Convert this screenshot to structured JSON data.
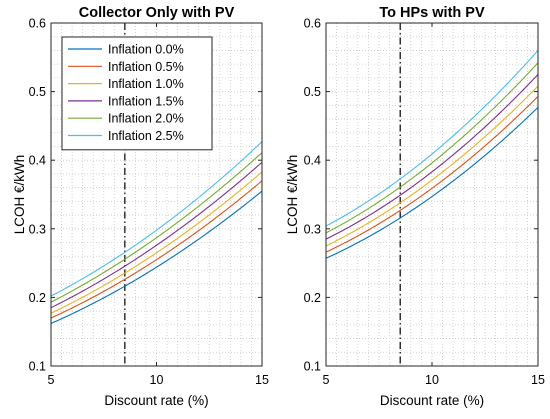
{
  "chart_data": [
    {
      "type": "line",
      "title": "Collector Only with PV",
      "xlabel": "Discount rate (%)",
      "ylabel": "LCOH €/kWh",
      "xlim": [
        5,
        15
      ],
      "ylim": [
        0.1,
        0.6
      ],
      "xticks": [
        5,
        10,
        15
      ],
      "yticks": [
        0.1,
        0.2,
        0.3,
        0.4,
        0.5,
        0.6
      ],
      "xtick_labels": [
        "5",
        "10",
        "15"
      ],
      "ytick_labels": [
        "0.1",
        "0.2",
        "0.3",
        "0.4",
        "0.5",
        "0.6"
      ],
      "grid": "dotted, major and minor",
      "legend_position": "top-left",
      "reference_line_x": 8.5,
      "x": [
        5,
        10,
        15
      ],
      "series": [
        {
          "name": "Inflation 0.0%",
          "color": "#0072BD",
          "values": [
            0.162,
            0.244,
            0.355
          ]
        },
        {
          "name": "Inflation 0.5%",
          "color": "#D95319",
          "values": [
            0.17,
            0.255,
            0.37
          ]
        },
        {
          "name": "Inflation 1.0%",
          "color": "#EDB120",
          "values": [
            0.177,
            0.265,
            0.383
          ]
        },
        {
          "name": "Inflation 1.5%",
          "color": "#7E2F8E",
          "values": [
            0.185,
            0.276,
            0.397
          ]
        },
        {
          "name": "Inflation 2.0%",
          "color": "#77AC30",
          "values": [
            0.193,
            0.287,
            0.411
          ]
        },
        {
          "name": "Inflation 2.5%",
          "color": "#4DBEEE",
          "values": [
            0.202,
            0.298,
            0.427
          ]
        }
      ]
    },
    {
      "type": "line",
      "title": "To HPs with PV",
      "xlabel": "Discount rate (%)",
      "ylabel": "LCOH €/kWh",
      "xlim": [
        5,
        15
      ],
      "ylim": [
        0.1,
        0.6
      ],
      "xticks": [
        5,
        10,
        15
      ],
      "yticks": [
        0.1,
        0.2,
        0.3,
        0.4,
        0.5,
        0.6
      ],
      "xtick_labels": [
        "5",
        "10",
        "15"
      ],
      "ytick_labels": [
        "0.1",
        "0.2",
        "0.3",
        "0.4",
        "0.5",
        "0.6"
      ],
      "grid": "dotted, major and minor",
      "reference_line_x": 8.5,
      "x": [
        5,
        10,
        15
      ],
      "series": [
        {
          "name": "Inflation 0.0%",
          "color": "#0072BD",
          "values": [
            0.257,
            0.347,
            0.477
          ]
        },
        {
          "name": "Inflation 0.5%",
          "color": "#D95319",
          "values": [
            0.266,
            0.359,
            0.493
          ]
        },
        {
          "name": "Inflation 1.0%",
          "color": "#EDB120",
          "values": [
            0.275,
            0.371,
            0.508
          ]
        },
        {
          "name": "Inflation 1.5%",
          "color": "#7E2F8E",
          "values": [
            0.285,
            0.383,
            0.525
          ]
        },
        {
          "name": "Inflation 2.0%",
          "color": "#77AC30",
          "values": [
            0.294,
            0.396,
            0.542
          ]
        },
        {
          "name": "Inflation 2.5%",
          "color": "#4DBEEE",
          "values": [
            0.304,
            0.409,
            0.56
          ]
        }
      ]
    }
  ]
}
